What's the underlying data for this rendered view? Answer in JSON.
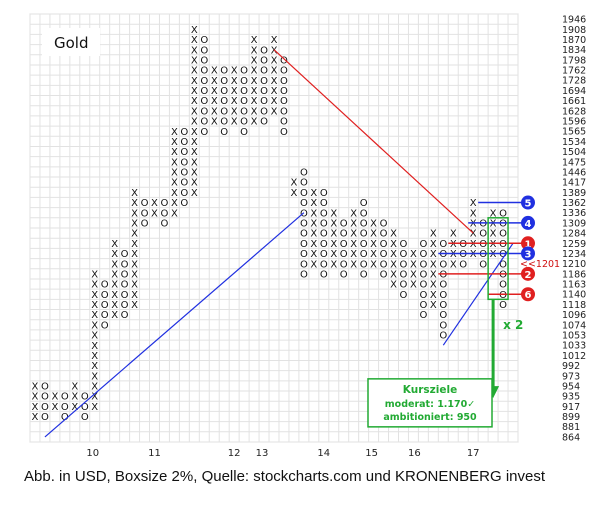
{
  "chart_data": {
    "type": "point-and-figure",
    "title": "Gold",
    "x_ticks": [
      "10",
      "11",
      "12",
      "13",
      "14",
      "15",
      "16",
      "17"
    ],
    "y_ticks": [
      1946,
      1908,
      1870,
      1834,
      1798,
      1762,
      1728,
      1694,
      1661,
      1628,
      1596,
      1565,
      1534,
      1504,
      1475,
      1446,
      1417,
      1389,
      1362,
      1336,
      1309,
      1284,
      1259,
      1234,
      1210,
      1186,
      1163,
      1140,
      1118,
      1096,
      1074,
      1053,
      1033,
      1012,
      992,
      973,
      954,
      935,
      917,
      899,
      881,
      864
    ],
    "current_price_label": "<<1201",
    "columns": [
      {
        "col": 0,
        "type": "X",
        "low": 899,
        "high": 954
      },
      {
        "col": 1,
        "type": "O",
        "low": 899,
        "high": 954
      },
      {
        "col": 2,
        "type": "X",
        "low": 917,
        "high": 935
      },
      {
        "col": 3,
        "type": "O",
        "low": 899,
        "high": 935
      },
      {
        "col": 4,
        "type": "X",
        "low": 917,
        "high": 954
      },
      {
        "col": 5,
        "type": "O",
        "low": 899,
        "high": 935
      },
      {
        "col": 6,
        "type": "X",
        "low": 917,
        "high": 1186
      },
      {
        "col": 7,
        "type": "O",
        "low": 1074,
        "high": 1163
      },
      {
        "col": 8,
        "type": "X",
        "low": 1096,
        "high": 1259
      },
      {
        "col": 9,
        "type": "O",
        "low": 1096,
        "high": 1234
      },
      {
        "col": 10,
        "type": "X",
        "low": 1118,
        "high": 1389
      },
      {
        "col": 11,
        "type": "O",
        "low": 1309,
        "high": 1362
      },
      {
        "col": 12,
        "type": "X",
        "low": 1336,
        "high": 1362
      },
      {
        "col": 13,
        "type": "O",
        "low": 1309,
        "high": 1362
      },
      {
        "col": 14,
        "type": "X",
        "low": 1336,
        "high": 1565
      },
      {
        "col": 15,
        "type": "O",
        "low": 1362,
        "high": 1565
      },
      {
        "col": 16,
        "type": "X",
        "low": 1389,
        "high": 1908
      },
      {
        "col": 17,
        "type": "O",
        "low": 1565,
        "high": 1870
      },
      {
        "col": 18,
        "type": "X",
        "low": 1596,
        "high": 1762
      },
      {
        "col": 19,
        "type": "O",
        "low": 1565,
        "high": 1762
      },
      {
        "col": 20,
        "type": "X",
        "low": 1596,
        "high": 1762
      },
      {
        "col": 21,
        "type": "O",
        "low": 1565,
        "high": 1762
      },
      {
        "col": 22,
        "type": "X",
        "low": 1596,
        "high": 1870
      },
      {
        "col": 23,
        "type": "O",
        "low": 1596,
        "high": 1834
      },
      {
        "col": 24,
        "type": "X",
        "low": 1628,
        "high": 1870
      },
      {
        "col": 25,
        "type": "O",
        "low": 1565,
        "high": 1798
      },
      {
        "col": 26,
        "type": "X",
        "low": 1389,
        "high": 1417
      },
      {
        "col": 27,
        "type": "O",
        "low": 1186,
        "high": 1446
      },
      {
        "col": 28,
        "type": "X",
        "low": 1210,
        "high": 1389
      },
      {
        "col": 29,
        "type": "O",
        "low": 1186,
        "high": 1389
      },
      {
        "col": 30,
        "type": "X",
        "low": 1210,
        "high": 1336
      },
      {
        "col": 31,
        "type": "O",
        "low": 1186,
        "high": 1309
      },
      {
        "col": 32,
        "type": "X",
        "low": 1210,
        "high": 1336
      },
      {
        "col": 33,
        "type": "O",
        "low": 1186,
        "high": 1362
      },
      {
        "col": 34,
        "type": "X",
        "low": 1210,
        "high": 1309
      },
      {
        "col": 35,
        "type": "O",
        "low": 1186,
        "high": 1309
      },
      {
        "col": 36,
        "type": "X",
        "low": 1163,
        "high": 1284
      },
      {
        "col": 37,
        "type": "O",
        "low": 1140,
        "high": 1259
      },
      {
        "col": 38,
        "type": "X",
        "low": 1163,
        "high": 1234
      },
      {
        "col": 39,
        "type": "O",
        "low": 1096,
        "high": 1259
      },
      {
        "col": 40,
        "type": "X",
        "low": 1118,
        "high": 1284
      },
      {
        "col": 41,
        "type": "O",
        "low": 1053,
        "high": 1259
      },
      {
        "col": 42,
        "type": "X",
        "low": 1210,
        "high": 1284
      },
      {
        "col": 43,
        "type": "O",
        "low": 1210,
        "high": 1259
      },
      {
        "col": 44,
        "type": "X",
        "low": 1234,
        "high": 1362
      },
      {
        "col": 45,
        "type": "O",
        "low": 1210,
        "high": 1309
      },
      {
        "col": 46,
        "type": "X",
        "low": 1234,
        "high": 1336
      },
      {
        "col": 47,
        "type": "O",
        "low": 1118,
        "high": 1336
      }
    ],
    "trendlines": [
      {
        "color": "#e02020",
        "from": {
          "col": 24,
          "value": 1834
        },
        "to": {
          "col": 44,
          "value": 1284
        }
      },
      {
        "color": "#2030e0",
        "from": {
          "col": 1,
          "value": 864
        },
        "to": {
          "col": 27,
          "value": 1336
        }
      },
      {
        "color": "#2030e0",
        "from": {
          "col": 41,
          "value": 1033
        },
        "to": {
          "col": 48,
          "value": 1259
        }
      }
    ],
    "levels": [
      {
        "label": "1",
        "value": 1259,
        "color": "#e02020",
        "from_col": 42
      },
      {
        "label": "2",
        "value": 1186,
        "color": "#e02020",
        "from_col": 41
      },
      {
        "label": "3",
        "value": 1234,
        "color": "#2030e0",
        "from_col": 41
      },
      {
        "label": "4",
        "value": 1309,
        "color": "#2030e0",
        "from_col": 44
      },
      {
        "label": "5",
        "value": 1362,
        "color": "#2030e0",
        "from_col": 45
      },
      {
        "label": "6",
        "value": 1140,
        "color": "#e02020",
        "from_col": 46
      }
    ],
    "count_label": "x 2",
    "target_box": {
      "title": "Kursziele",
      "moderate": "moderat: 1.170✓",
      "ambitious": "ambitioniert: 950"
    }
  },
  "caption": "Abb. in USD, Boxsize 2%, Quelle: stockcharts.com und KRONENBERG invest"
}
